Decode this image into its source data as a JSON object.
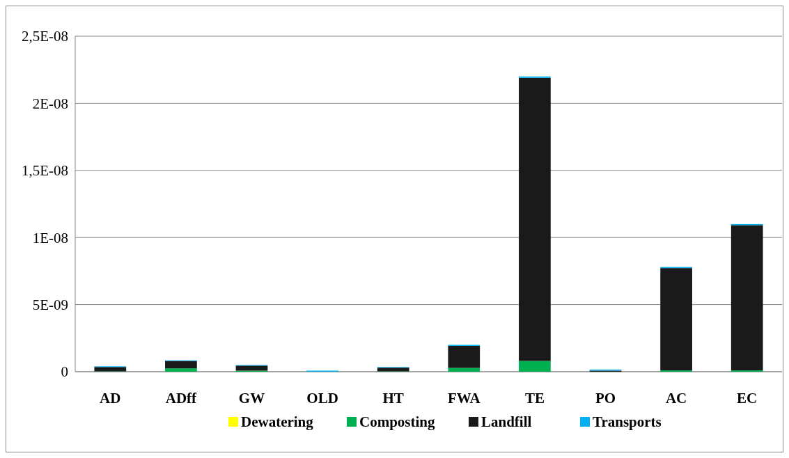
{
  "chart_data": {
    "type": "bar",
    "stacked": true,
    "categories": [
      "AD",
      "ADff",
      "GW",
      "OLD",
      "HT",
      "FWA",
      "TE",
      "PO",
      "AC",
      "EC"
    ],
    "series": [
      {
        "name": "Dewatering",
        "color": "#ffff00",
        "values": [
          0,
          0,
          0,
          0,
          0,
          0,
          0,
          0,
          0,
          0
        ]
      },
      {
        "name": "Composting",
        "color": "#00b050",
        "values": [
          3e-11,
          2.5e-10,
          8e-11,
          null,
          3e-11,
          2.8e-10,
          8e-10,
          null,
          1e-10,
          1e-10
        ]
      },
      {
        "name": "Landfill",
        "color": "#1a1a1a",
        "values": [
          3.2e-10,
          5.5e-10,
          3.7e-10,
          0,
          2.7e-10,
          1.64e-09,
          2.11e-08,
          8e-11,
          7.62e-09,
          1.082e-08
        ]
      },
      {
        "name": "Transports",
        "color": "#00b0f0",
        "values": [
          5e-11,
          5e-11,
          5e-11,
          8e-11,
          5e-11,
          8e-11,
          1e-10,
          8e-11,
          8e-11,
          8e-11
        ]
      }
    ],
    "ylim": [
      0,
      2.5e-08
    ],
    "yticks": [
      {
        "value": 0,
        "label": "0"
      },
      {
        "value": 5e-09,
        "label": "5E-09"
      },
      {
        "value": 1e-08,
        "label": "1E-08"
      },
      {
        "value": 1.5e-08,
        "label": "1,5E-08"
      },
      {
        "value": 2e-08,
        "label": "2E-08"
      },
      {
        "value": 2.5e-08,
        "label": "2,5E-08"
      }
    ],
    "grid": "y",
    "legend": "bottom"
  }
}
